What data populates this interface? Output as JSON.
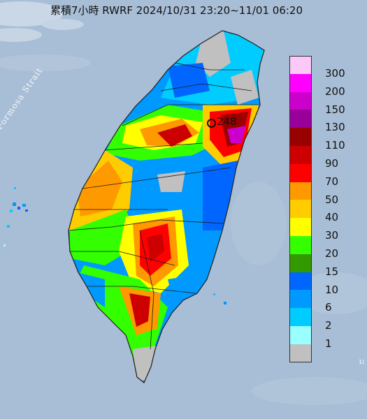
{
  "title": "累積7小時 RWRF 2024/10/31 23:20~11/01 06:20",
  "strait_label": "Formosa Strait",
  "max_value_label": "248",
  "corner_note": "1(",
  "legend": {
    "items": [
      {
        "label": "300",
        "color": "#fbc8f8"
      },
      {
        "label": "200",
        "color": "#ff00ff"
      },
      {
        "label": "150",
        "color": "#cc00cc"
      },
      {
        "label": "130",
        "color": "#990099"
      },
      {
        "label": "110",
        "color": "#990000"
      },
      {
        "label": "90",
        "color": "#cc0000"
      },
      {
        "label": "70",
        "color": "#ff0000"
      },
      {
        "label": "50",
        "color": "#ff9900"
      },
      {
        "label": "40",
        "color": "#ffcc00"
      },
      {
        "label": "30",
        "color": "#ffff00"
      },
      {
        "label": "20",
        "color": "#33ff00"
      },
      {
        "label": "15",
        "color": "#339900"
      },
      {
        "label": "10",
        "color": "#0066ff"
      },
      {
        "label": "6",
        "color": "#0099ff"
      },
      {
        "label": "2",
        "color": "#00ccff"
      },
      {
        "label": "1",
        "color": "#99ffff"
      },
      {
        "label": "",
        "color": "#c0c0c0"
      }
    ]
  },
  "colors": {
    "sea": "#a9bfd6",
    "land_base": "#c0c0c0"
  }
}
